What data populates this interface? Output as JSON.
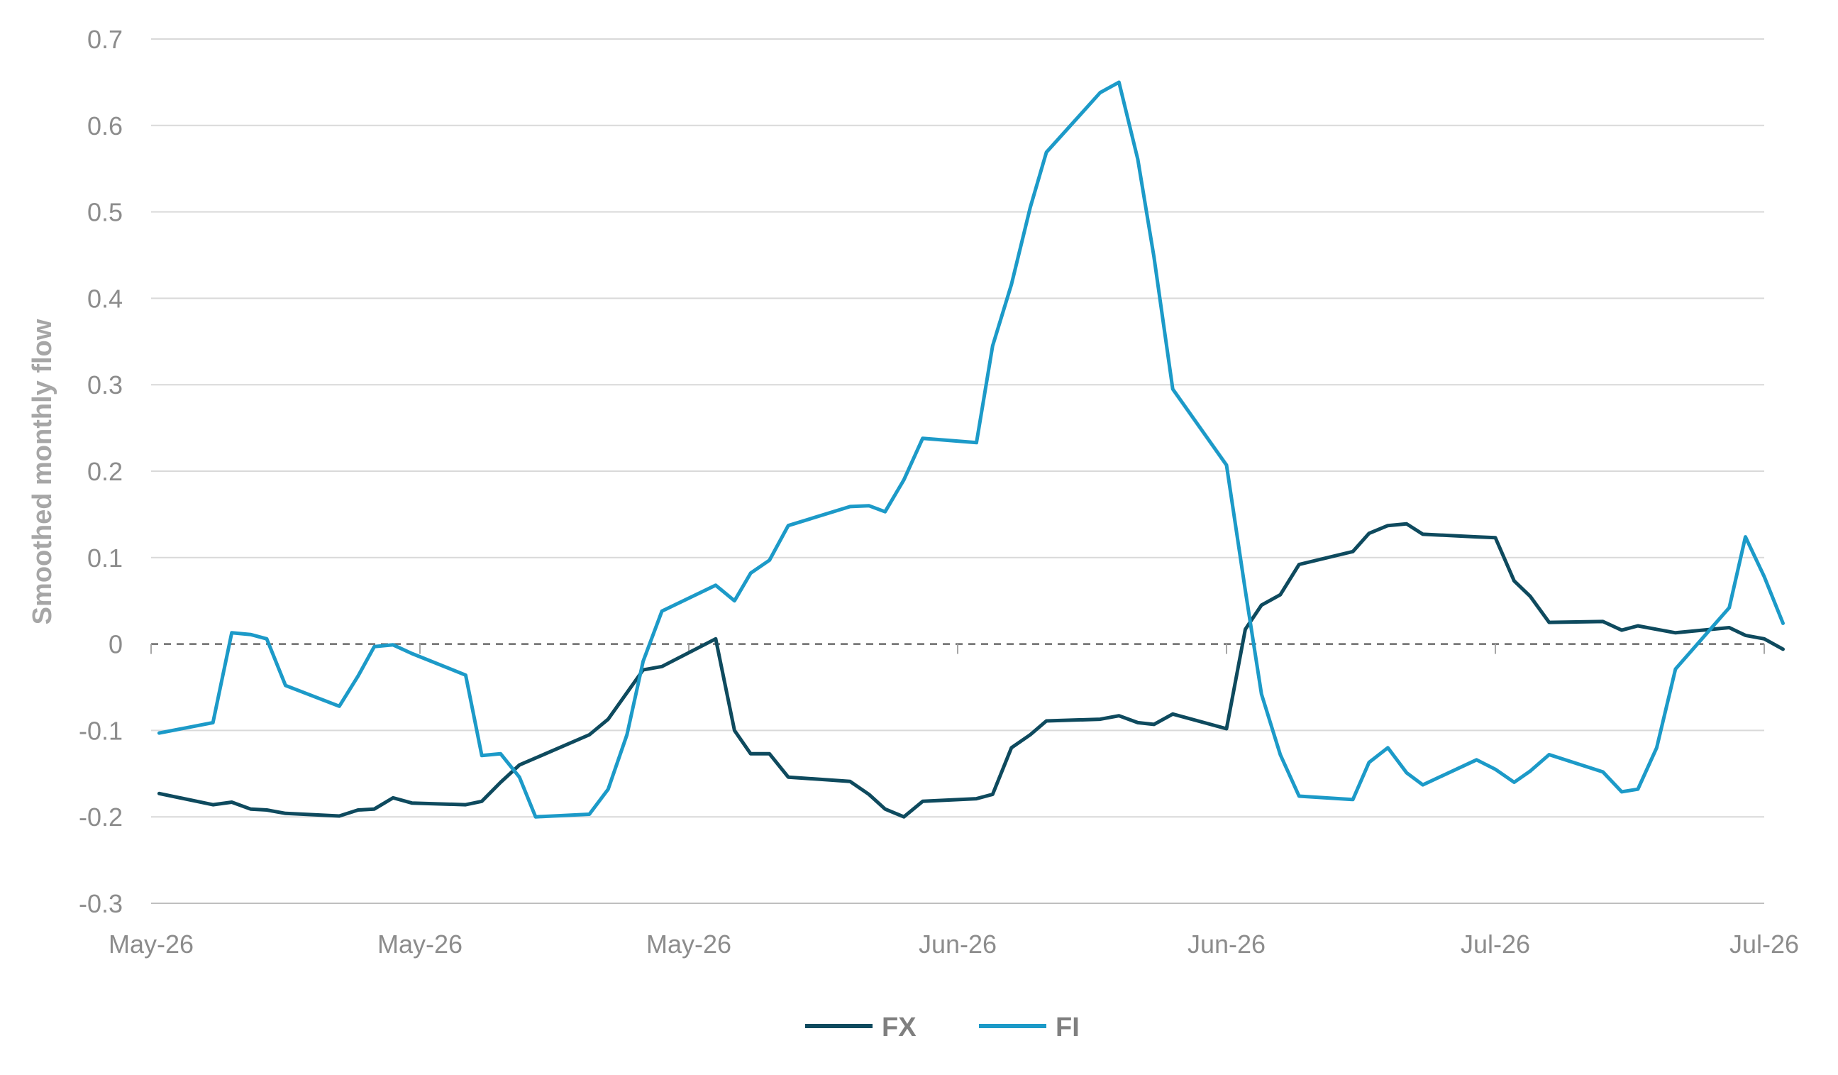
{
  "chart_data": {
    "type": "line",
    "title": "",
    "xlabel": "",
    "ylabel": "Smoothed monthly flow",
    "ylim": [
      -0.3,
      0.7
    ],
    "yticks": [
      -0.3,
      -0.2,
      -0.1,
      0,
      0.1,
      0.2,
      0.3,
      0.4,
      0.5,
      0.6,
      0.7
    ],
    "ytick_labels": [
      "-0.3",
      "-0.2",
      "-0.1",
      "0",
      "0.1",
      "0.2",
      "0.3",
      "0.4",
      "0.5",
      "0.6",
      "0.7"
    ],
    "xlim": [
      0,
      60
    ],
    "xticks": [
      0,
      10,
      20,
      30,
      40,
      50,
      60
    ],
    "xtick_labels": [
      "May-26",
      "May-26",
      "May-26",
      "Jun-26",
      "Jun-26",
      "Jul-26",
      "Jul-26"
    ],
    "grid": true,
    "zero_line": "dashed",
    "legend_position": "bottom",
    "series": [
      {
        "name": "FX",
        "color": "#0e4a5e",
        "points": [
          [
            0.3,
            -0.173
          ],
          [
            2.3,
            -0.186
          ],
          [
            3.0,
            -0.183
          ],
          [
            3.7,
            -0.191
          ],
          [
            4.3,
            -0.192
          ],
          [
            5.0,
            -0.196
          ],
          [
            7.0,
            -0.199
          ],
          [
            7.7,
            -0.192
          ],
          [
            8.3,
            -0.191
          ],
          [
            9.0,
            -0.178
          ],
          [
            9.7,
            -0.184
          ],
          [
            11.7,
            -0.186
          ],
          [
            12.3,
            -0.182
          ],
          [
            13.0,
            -0.16
          ],
          [
            13.7,
            -0.14
          ],
          [
            16.3,
            -0.105
          ],
          [
            17.0,
            -0.087
          ],
          [
            18.3,
            -0.03
          ],
          [
            19.0,
            -0.026
          ],
          [
            21.0,
            0.006
          ],
          [
            21.7,
            -0.1
          ],
          [
            22.3,
            -0.127
          ],
          [
            23.0,
            -0.127
          ],
          [
            23.7,
            -0.154
          ],
          [
            26.0,
            -0.159
          ],
          [
            26.7,
            -0.174
          ],
          [
            27.3,
            -0.191
          ],
          [
            28.0,
            -0.2
          ],
          [
            28.7,
            -0.182
          ],
          [
            30.7,
            -0.179
          ],
          [
            31.3,
            -0.174
          ],
          [
            32.0,
            -0.12
          ],
          [
            32.7,
            -0.105
          ],
          [
            33.3,
            -0.089
          ],
          [
            35.3,
            -0.087
          ],
          [
            36.0,
            -0.083
          ],
          [
            36.7,
            -0.091
          ],
          [
            37.3,
            -0.093
          ],
          [
            38.0,
            -0.081
          ],
          [
            40.0,
            -0.098
          ],
          [
            40.7,
            0.017
          ],
          [
            41.3,
            0.045
          ],
          [
            42.0,
            0.057
          ],
          [
            42.7,
            0.092
          ],
          [
            44.7,
            0.107
          ],
          [
            45.3,
            0.128
          ],
          [
            46.0,
            0.137
          ],
          [
            46.7,
            0.139
          ],
          [
            47.3,
            0.127
          ],
          [
            49.3,
            0.124
          ],
          [
            50.0,
            0.123
          ],
          [
            50.7,
            0.073
          ],
          [
            51.3,
            0.055
          ],
          [
            52.0,
            0.025
          ],
          [
            54.0,
            0.026
          ],
          [
            54.7,
            0.016
          ],
          [
            55.3,
            0.021
          ],
          [
            56.0,
            0.017
          ],
          [
            56.7,
            0.013
          ],
          [
            58.7,
            0.019
          ],
          [
            59.3,
            0.01
          ],
          [
            60.0,
            0.006
          ],
          [
            60.7,
            -0.006
          ]
        ]
      },
      {
        "name": "FI",
        "color": "#1c9ac8",
        "points": [
          [
            0.3,
            -0.103
          ],
          [
            2.3,
            -0.091
          ],
          [
            3.0,
            0.013
          ],
          [
            3.7,
            0.011
          ],
          [
            4.3,
            0.006
          ],
          [
            5.0,
            -0.048
          ],
          [
            7.0,
            -0.072
          ],
          [
            7.7,
            -0.037
          ],
          [
            8.3,
            -0.003
          ],
          [
            9.0,
            -0.001
          ],
          [
            9.7,
            -0.011
          ],
          [
            11.7,
            -0.036
          ],
          [
            12.3,
            -0.129
          ],
          [
            13.0,
            -0.127
          ],
          [
            13.7,
            -0.154
          ],
          [
            14.3,
            -0.2
          ],
          [
            16.3,
            -0.197
          ],
          [
            17.0,
            -0.168
          ],
          [
            17.7,
            -0.105
          ],
          [
            18.3,
            -0.02
          ],
          [
            19.0,
            0.038
          ],
          [
            21.0,
            0.068
          ],
          [
            21.7,
            0.05
          ],
          [
            22.3,
            0.082
          ],
          [
            23.0,
            0.097
          ],
          [
            23.7,
            0.137
          ],
          [
            26.0,
            0.159
          ],
          [
            26.7,
            0.16
          ],
          [
            27.3,
            0.153
          ],
          [
            28.0,
            0.19
          ],
          [
            28.7,
            0.238
          ],
          [
            30.7,
            0.233
          ],
          [
            31.3,
            0.345
          ],
          [
            32.0,
            0.416
          ],
          [
            32.7,
            0.505
          ],
          [
            33.3,
            0.569
          ],
          [
            35.3,
            0.638
          ],
          [
            36.0,
            0.65
          ],
          [
            36.7,
            0.561
          ],
          [
            37.3,
            0.448
          ],
          [
            38.0,
            0.295
          ],
          [
            40.0,
            0.207
          ],
          [
            40.7,
            0.062
          ],
          [
            41.3,
            -0.058
          ],
          [
            42.0,
            -0.128
          ],
          [
            42.7,
            -0.176
          ],
          [
            44.7,
            -0.18
          ],
          [
            45.3,
            -0.137
          ],
          [
            46.0,
            -0.12
          ],
          [
            46.7,
            -0.149
          ],
          [
            47.3,
            -0.163
          ],
          [
            49.3,
            -0.134
          ],
          [
            50.0,
            -0.145
          ],
          [
            50.7,
            -0.16
          ],
          [
            51.3,
            -0.147
          ],
          [
            52.0,
            -0.128
          ],
          [
            54.0,
            -0.148
          ],
          [
            54.7,
            -0.171
          ],
          [
            55.3,
            -0.168
          ],
          [
            56.0,
            -0.12
          ],
          [
            56.7,
            -0.029
          ],
          [
            58.7,
            0.042
          ],
          [
            59.3,
            0.124
          ],
          [
            60.0,
            0.078
          ],
          [
            60.7,
            0.024
          ]
        ]
      }
    ]
  }
}
